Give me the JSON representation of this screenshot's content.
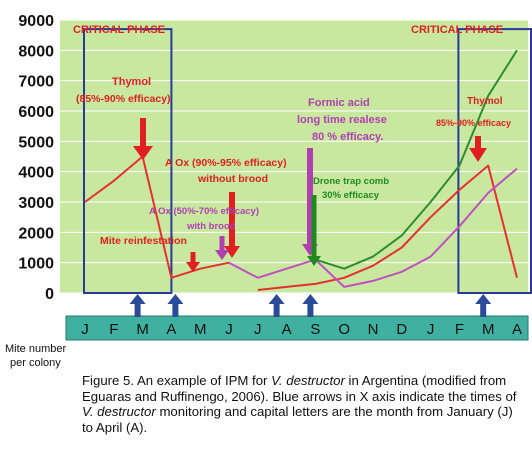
{
  "chart_data": {
    "type": "line",
    "title": "",
    "xlabel": "",
    "ylabel": "Mite number per colony",
    "ylim": [
      0,
      9000
    ],
    "yticks": [
      0,
      1000,
      2000,
      3000,
      4000,
      5000,
      6000,
      7000,
      8000,
      9000
    ],
    "grid": true,
    "legend": "none",
    "categories": [
      "J",
      "F",
      "M",
      "A",
      "M",
      "J",
      "J",
      "A",
      "S",
      "O",
      "N",
      "D",
      "J",
      "F",
      "M",
      "A"
    ],
    "series": [
      {
        "color": "#e53030",
        "values": [
          null,
          null,
          null,
          null,
          null,
          null,
          100,
          200,
          300,
          500,
          900,
          1500,
          2500,
          3400,
          4200,
          500
        ]
      },
      {
        "color": "#e53030",
        "values": [
          3000,
          3700,
          4500,
          500,
          800,
          1000,
          null,
          null,
          null,
          null,
          null,
          null,
          null,
          null,
          null,
          null
        ]
      },
      {
        "color": "#c050c0",
        "values": [
          null,
          null,
          null,
          null,
          null,
          1000,
          500,
          800,
          1100,
          200,
          400,
          700,
          1200,
          2200,
          3300,
          4100
        ]
      },
      {
        "color": "#2e8b2e",
        "values": [
          null,
          null,
          null,
          null,
          null,
          null,
          null,
          null,
          1100,
          800,
          1200,
          1900,
          3000,
          4200,
          6500,
          8000
        ]
      }
    ],
    "monitoring_months": [
      "M",
      "A",
      "A",
      "S",
      "M"
    ],
    "critical_phases": [
      [
        "J",
        "A"
      ],
      [
        "F",
        "A"
      ]
    ],
    "colors": {
      "plot_background": "#c8e8a0",
      "month_band": "#40b0a0",
      "critical_box": "#2a3a9a",
      "annotation_red": "#e02020",
      "annotation_purple": "#b040b0",
      "annotation_green": "#1e8a1e",
      "monitor_arrow": "#2a4a9a"
    }
  },
  "annotations": {
    "critical_left": "CRITICAL PHASE",
    "critical_right": "CRITICAL PHASE",
    "thymol_left_1": "Thymol",
    "thymol_left_2": "(85%-90%  efficacy)",
    "aox_1_1": "A Ox (90%-95%  efficacy)",
    "aox_1_2": "without brood",
    "aox_2_1": "A Ox (50%-70% efficacy)",
    "aox_2_2": "with brood",
    "mite_reinfestation": "Mite reinfestation",
    "formic_1": "Formic acid",
    "formic_2": "long time realese",
    "formic_3": "80 % efficacy.",
    "drone_1": "Drone trap comb",
    "drone_2": "30% efficacy",
    "thymol_right_1": "Thymol",
    "thymol_right_2": "85%-90% efficacy",
    "ylabel_1": "Mite number",
    "ylabel_2": "per colony"
  },
  "caption": {
    "p1": "Figure 5. An example of IPM for ",
    "i1": "V. destructor",
    "p2": " in Argentina (modified from Eguaras and Ruffinengo, 2006). Blue arrows in X axis indicate the times of ",
    "i2": "V. destructor",
    "p3": " monitoring and capital letters are the month from January (J) to April (A)."
  }
}
